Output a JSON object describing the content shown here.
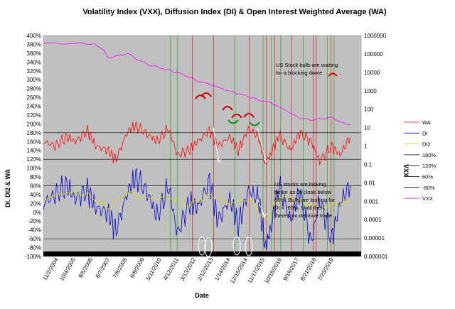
{
  "chart_data": {
    "type": "line",
    "title": "Volatility Index (VXX), Diffusion Index (DI) & Open Interest Weighted Average (WA)",
    "xlabel": "Date",
    "ylabel_left": "DI, DI2 & WA",
    "ylabel_right": "VXX",
    "y_left_ticks": [
      "400%",
      "380%",
      "360%",
      "340%",
      "320%",
      "300%",
      "280%",
      "260%",
      "240%",
      "220%",
      "200%",
      "180%",
      "160%",
      "140%",
      "120%",
      "100%",
      "80%",
      "60%",
      "40%",
      "20%",
      "0%",
      "-20%",
      "-40%",
      "-60%",
      "-80%",
      "-100%"
    ],
    "ylim_left": [
      -1.0,
      4.0
    ],
    "y_right_ticks": [
      "1000000",
      "100000",
      "10000",
      "1000",
      "100",
      "10",
      "1",
      "0.1",
      "0.01",
      "0.001",
      "0.0001",
      "0.00001",
      "0.000001"
    ],
    "ylim_right_log10": [
      -6,
      6
    ],
    "x_ticks": [
      "11/2/2004",
      "10/4/2005",
      "9/5/2006",
      "8/7/2007",
      "7/8/2008",
      "6/9/2009",
      "5/11/2010",
      "4/12/2011",
      "3/13/2012",
      "2/12/2013",
      "1/14/2014",
      "12/16/2014",
      "11/17/2015",
      "10/18/2016",
      "9/19/2017",
      "8/21/2018",
      "7/23/2019"
    ],
    "x_range": [
      "2004-11-02",
      "2020-06-15"
    ],
    "plot_background": "#c0c0c0",
    "reference_lines": [
      {
        "name": "180%",
        "value": 1.8,
        "color": "#000000"
      },
      {
        "name": "120%",
        "value": 1.2,
        "color": "#000000"
      },
      {
        "name": "60%",
        "value": 0.6,
        "color": "#000000"
      },
      {
        "name": "-60%",
        "value": -0.6,
        "color": "#000000"
      }
    ],
    "vertical_markers": [
      {
        "date": "2011-02-01",
        "color": "#33aa33"
      },
      {
        "date": "2011-06-01",
        "color": "#33aa33"
      },
      {
        "date": "2012-03-01",
        "color": "#cc3333"
      },
      {
        "date": "2013-03-15",
        "color": "#cc3333"
      },
      {
        "date": "2014-04-01",
        "color": "#33aa33"
      },
      {
        "date": "2014-12-15",
        "color": "#cc3333"
      },
      {
        "date": "2015-08-20",
        "color": "#33aa33"
      },
      {
        "date": "2015-10-15",
        "color": "#cc3333"
      },
      {
        "date": "2016-01-20",
        "color": "#33aa33"
      },
      {
        "date": "2016-03-15",
        "color": "#cc3333"
      },
      {
        "date": "2016-07-01",
        "color": "#33aa33"
      },
      {
        "date": "2017-01-15",
        "color": "#cc3333"
      },
      {
        "date": "2017-08-15",
        "color": "#33aa33"
      },
      {
        "date": "2018-02-05",
        "color": "#cc3333"
      },
      {
        "date": "2018-04-01",
        "color": "#cc3333"
      },
      {
        "date": "2018-10-15",
        "color": "#33aa33"
      },
      {
        "date": "2018-12-24",
        "color": "#cc3333"
      },
      {
        "date": "2019-02-15",
        "color": "#33aa33"
      }
    ],
    "series": [
      {
        "name": "WA",
        "color": "#ff0000",
        "axis": "left",
        "dates": [
          "2004-11-02",
          "2005-06-01",
          "2006-01-01",
          "2006-06-01",
          "2007-01-01",
          "2007-06-01",
          "2008-01-01",
          "2008-06-01",
          "2009-01-01",
          "2009-06-01",
          "2010-01-01",
          "2010-06-01",
          "2011-01-01",
          "2011-06-01",
          "2012-01-01",
          "2012-06-01",
          "2013-01-01",
          "2013-06-01",
          "2014-01-01",
          "2014-06-01",
          "2014-12-01",
          "2015-06-01",
          "2015-10-01",
          "2016-01-01",
          "2016-06-01",
          "2017-01-01",
          "2017-06-01",
          "2018-01-01",
          "2018-06-01",
          "2019-01-01",
          "2019-06-01",
          "2019-12-01"
        ],
        "values": [
          1.6,
          1.5,
          1.7,
          1.6,
          1.85,
          1.5,
          1.4,
          1.2,
          1.85,
          1.95,
          1.75,
          1.6,
          1.9,
          1.3,
          1.4,
          1.6,
          1.85,
          1.5,
          1.7,
          1.4,
          1.9,
          1.7,
          1.1,
          1.3,
          1.75,
          1.4,
          1.8,
          1.6,
          1.15,
          1.5,
          1.3,
          1.7
        ]
      },
      {
        "name": "DI",
        "color": "#0000cc",
        "axis": "left",
        "dates": [
          "2004-11-02",
          "2005-06-01",
          "2006-01-01",
          "2006-06-01",
          "2007-01-01",
          "2007-06-01",
          "2008-01-01",
          "2008-06-01",
          "2009-01-01",
          "2009-06-01",
          "2010-01-01",
          "2010-06-01",
          "2011-01-01",
          "2011-06-01",
          "2012-01-01",
          "2012-06-01",
          "2013-01-01",
          "2013-06-01",
          "2014-01-01",
          "2014-06-01",
          "2014-12-01",
          "2015-06-01",
          "2015-10-01",
          "2016-01-01",
          "2016-06-01",
          "2017-01-01",
          "2017-06-01",
          "2018-01-01",
          "2018-06-01",
          "2019-01-01",
          "2019-06-01",
          "2019-12-01"
        ],
        "values": [
          0.2,
          0.4,
          0.6,
          0.3,
          0.5,
          0.1,
          0.0,
          -0.4,
          0.5,
          0.8,
          0.4,
          -0.1,
          0.6,
          -0.5,
          0.2,
          0.1,
          0.7,
          -0.2,
          0.3,
          -0.3,
          0.5,
          0.3,
          -0.8,
          -0.4,
          0.6,
          -0.2,
          0.5,
          -0.7,
          0.3,
          -0.6,
          0.2,
          0.6
        ]
      },
      {
        "name": "DI2",
        "color": "#dddd00",
        "axis": "left",
        "dates": [
          "2004-11-02",
          "2006-01-01",
          "2007-01-01",
          "2008-01-01",
          "2009-01-01",
          "2010-01-01",
          "2011-01-01",
          "2012-01-01",
          "2013-01-01",
          "2014-01-01",
          "2015-01-01",
          "2015-10-01",
          "2016-06-01",
          "2017-06-01",
          "2018-06-01",
          "2019-06-01",
          "2019-12-01"
        ],
        "values": [
          0.3,
          0.45,
          0.4,
          0.1,
          0.45,
          0.3,
          0.35,
          0.15,
          0.4,
          0.2,
          0.3,
          -0.2,
          0.35,
          0.25,
          0.1,
          0.2,
          0.3
        ]
      },
      {
        "name": "VXX",
        "color": "#ff00ff",
        "axis": "right",
        "dates": [
          "2004-11-02",
          "2005-06-01",
          "2006-01-01",
          "2006-06-01",
          "2007-01-01",
          "2007-06-01",
          "2008-01-01",
          "2008-06-01",
          "2009-01-01",
          "2009-06-01",
          "2010-01-01",
          "2010-06-01",
          "2011-01-01",
          "2011-06-01",
          "2012-01-01",
          "2012-06-01",
          "2013-01-01",
          "2013-06-01",
          "2014-01-01",
          "2014-06-01",
          "2015-01-01",
          "2015-06-01",
          "2016-01-01",
          "2016-06-01",
          "2017-01-01",
          "2017-06-01",
          "2018-01-01",
          "2018-06-01",
          "2019-01-01",
          "2019-06-01",
          "2019-12-01"
        ],
        "values": [
          400000,
          380000,
          340000,
          400000,
          350000,
          330000,
          60000,
          75000,
          105000,
          50000,
          25000,
          20000,
          13000,
          9500,
          5500,
          3300,
          2300,
          1500,
          950,
          700,
          450,
          310,
          220,
          130,
          58,
          33,
          25,
          30,
          36,
          20,
          14
        ]
      }
    ],
    "legend": [
      "WA",
      "DI",
      "DI2",
      "180%",
      "120%",
      "60%",
      "-60%",
      "VXX"
    ],
    "legend_position": "right"
  },
  "annotations": [
    {
      "lines": [
        "US Stock bulls are waiting",
        "for a blocking dome"
      ]
    },
    {
      "lines": [
        "US stocks are looking",
        "better as DI close below",
        "60%.  Bulls are looking for",
        "DI < -60%.  Until then,",
        "there's no decisive trade."
      ]
    }
  ],
  "colors": {
    "wa": "#ff0000",
    "di": "#0000cc",
    "di2": "#dddd00",
    "vxx": "#ff00ff",
    "green_marker": "#33aa33",
    "red_marker": "#cc3333",
    "dome": "#cc0000",
    "green_arc": "#009900",
    "white_arrow": "#ffffff",
    "floor_band": "#000000"
  }
}
